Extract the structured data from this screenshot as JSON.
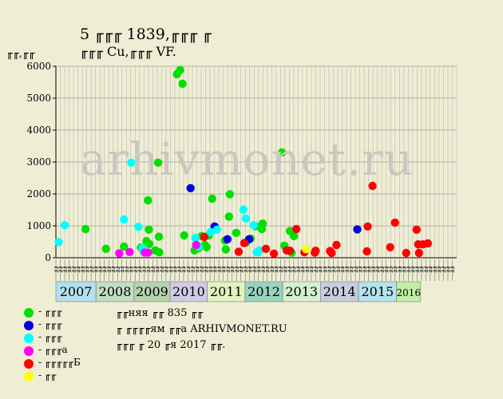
{
  "title_line1": "5 ╓╓╓ 1839,╓╓╓ ╓",
  "title_line2": "╓╓╓ Cu,╓╓╓ VF.",
  "ylabel": "╓╓,╓╓",
  "watermark": "arhivmonet.ru",
  "legend": [
    {
      "label": "- ╓╓╓",
      "color": "#00e000",
      "icon": "green-dot-icon"
    },
    {
      "label": "- ╓╓╓",
      "color": "#0000e0",
      "icon": "blue-dot-icon"
    },
    {
      "label": "- ╓╓╓",
      "color": "#00ffff",
      "icon": "cyan-dot-icon"
    },
    {
      "label": "- ╓╓╓a",
      "color": "#ff00ff",
      "icon": "magenta-dot-icon"
    },
    {
      "label": "- ╓╓╓╓╓Б",
      "color": "#ff0000",
      "icon": "red-dot-icon"
    },
    {
      "label": "- ╓╓",
      "color": "#ffff00",
      "icon": "yellow-dot-icon"
    }
  ],
  "info": {
    "line1": "╓╓няя ╓╓ 835 ╓╓",
    "line2": "╓ ╓╓╓╓ям ╓╓a ARHIVMONET.RU",
    "line3": "╓╓╓ ╓ 20 ╓я 2017 ╓╓."
  },
  "chart_data": {
    "type": "scatter",
    "ylim": [
      0,
      6000
    ],
    "xlim": [
      0,
      100
    ],
    "y_ticks": [
      0,
      1000,
      2000,
      3000,
      4000,
      5000,
      6000
    ],
    "grid": true,
    "years": [
      {
        "label": "2007",
        "start": 0,
        "end": 10,
        "color": "#b4e0ee"
      },
      {
        "label": "2008",
        "start": 10,
        "end": 19.5,
        "color": "#c4dcc4"
      },
      {
        "label": "2009",
        "start": 19.5,
        "end": 28.5,
        "color": "#b4d4b0"
      },
      {
        "label": "2010",
        "start": 28.5,
        "end": 37.8,
        "color": "#d0cce4"
      },
      {
        "label": "2011",
        "start": 37.8,
        "end": 47.2,
        "color": "#e2f2c0"
      },
      {
        "label": "2012",
        "start": 47.2,
        "end": 56.6,
        "color": "#98d4c0"
      },
      {
        "label": "2013",
        "start": 56.6,
        "end": 66,
        "color": "#d4f0d0"
      },
      {
        "label": "2014",
        "start": 66,
        "end": 75.5,
        "color": "#c8ccdc"
      },
      {
        "label": "2015",
        "start": 75.5,
        "end": 85,
        "color": "#b4e4ee"
      },
      {
        "label": "2016",
        "start": 85,
        "end": 91,
        "color": "#c4eea8"
      }
    ],
    "month_labels": [
      "╓╓",
      "╓╓",
      "╓╓",
      "╓╓",
      "╓╓",
      "╓╓",
      "╓╓",
      "╓╓",
      "╓╓",
      "╓╓",
      "╓╓",
      "╓╓",
      "╓╓",
      "╓╓",
      "╓╓",
      "╓╓",
      "╓╓",
      "╓╓",
      "╓╓",
      "╓╓",
      "╓╓",
      "╓╓",
      "╓╓",
      "╓╓",
      "╓╓",
      "╓╓",
      "╓╓",
      "╓╓",
      "╓╓",
      "╓╓",
      "╓╓",
      "╓╓",
      "╓╓",
      "╓╓",
      "╓╓",
      "╓╓",
      "╓╓",
      "╓╓",
      "╓╓",
      "╓╓",
      "╓╓",
      "╓╓",
      "╓╓",
      "╓╓",
      "╓╓",
      "╓╓",
      "╓╓",
      "╓╓",
      "╓╓",
      "╓╓",
      "╓╓",
      "╓╓",
      "╓╓",
      "╓╓",
      "╓╓",
      "╓╓",
      "╓╓",
      "╓╓",
      "╓╓",
      "╓╓",
      "╓╓",
      "╓╓",
      "╓╓",
      "╓╓",
      "╓╓",
      "╓╓",
      "╓╓",
      "╓╓",
      "╓╓",
      "╓╓",
      "╓╓",
      "╓╓",
      "╓╓",
      "╓╓",
      "╓╓",
      "╓╓",
      "╓╓",
      "╓╓",
      "╓╓",
      "╓╓",
      "╓╓",
      "╓╓",
      "╓╓",
      "╓╓",
      "╓╓",
      "╓╓",
      "╓╓",
      "╓╓",
      "╓╓",
      "╓╓",
      "╓╓"
    ],
    "series": [
      {
        "color": "#00e000",
        "points": [
          [
            7.4,
            900
          ],
          [
            12.5,
            280
          ],
          [
            17,
            350
          ],
          [
            21.2,
            320
          ],
          [
            22.6,
            520
          ],
          [
            23,
            1800
          ],
          [
            23.2,
            880
          ],
          [
            23.3,
            430
          ],
          [
            24.8,
            230
          ],
          [
            25.5,
            2980
          ],
          [
            25.7,
            660
          ],
          [
            25.8,
            170
          ],
          [
            30.2,
            5750
          ],
          [
            31,
            5880
          ],
          [
            31.6,
            5450
          ],
          [
            32,
            700
          ],
          [
            34.6,
            230
          ],
          [
            35.6,
            300
          ],
          [
            36.4,
            680
          ],
          [
            37.2,
            400
          ],
          [
            37.6,
            330
          ],
          [
            38.2,
            700
          ],
          [
            39,
            1850
          ],
          [
            42.2,
            540
          ],
          [
            42.4,
            260
          ],
          [
            43.2,
            1290
          ],
          [
            43.4,
            1990
          ],
          [
            45,
            780
          ],
          [
            47.4,
            470
          ],
          [
            48.6,
            600
          ],
          [
            49.8,
            990
          ],
          [
            50.4,
            180
          ],
          [
            51.4,
            900
          ],
          [
            51.6,
            1070
          ],
          [
            56.4,
            3300
          ],
          [
            57,
            380
          ],
          [
            58.4,
            840
          ],
          [
            58.8,
            160
          ],
          [
            59.4,
            680
          ]
        ]
      },
      {
        "color": "#0000e0",
        "points": [
          [
            33.6,
            2180
          ],
          [
            39.6,
            980
          ],
          [
            42.8,
            580
          ],
          [
            48.2,
            580
          ],
          [
            75.2,
            890
          ]
        ]
      },
      {
        "color": "#00ffff",
        "points": [
          [
            0.7,
            490
          ],
          [
            2.2,
            1020
          ],
          [
            17,
            1200
          ],
          [
            18.8,
            2980
          ],
          [
            20.6,
            970
          ],
          [
            21.6,
            300
          ],
          [
            21.9,
            190
          ],
          [
            34.8,
            620
          ],
          [
            35.6,
            350
          ],
          [
            38.6,
            800
          ],
          [
            40.2,
            880
          ],
          [
            46.8,
            1510
          ],
          [
            47.4,
            1230
          ],
          [
            49.4,
            1020
          ],
          [
            50.1,
            170
          ],
          [
            50.8,
            230
          ]
        ]
      },
      {
        "color": "#ff00ff",
        "points": [
          [
            15.8,
            140
          ],
          [
            18.4,
            180
          ],
          [
            22.2,
            160
          ],
          [
            23,
            160
          ],
          [
            35,
            400
          ]
        ]
      },
      {
        "color": "#ff0000",
        "points": [
          [
            37,
            650
          ],
          [
            45.6,
            190
          ],
          [
            47,
            460
          ],
          [
            52.4,
            280
          ],
          [
            54.4,
            130
          ],
          [
            57.6,
            230
          ],
          [
            58.4,
            220
          ],
          [
            60,
            900
          ],
          [
            62,
            170
          ],
          [
            64.6,
            160
          ],
          [
            64.8,
            220
          ],
          [
            68.4,
            210
          ],
          [
            68.8,
            150
          ],
          [
            70,
            400
          ],
          [
            77.6,
            200
          ],
          [
            77.8,
            980
          ],
          [
            79,
            2250
          ],
          [
            83.4,
            330
          ],
          [
            84.6,
            1100
          ],
          [
            87.4,
            150
          ],
          [
            90,
            880
          ],
          [
            90.4,
            420
          ],
          [
            90.6,
            150
          ],
          [
            91.6,
            420
          ],
          [
            92.8,
            450
          ]
        ]
      },
      {
        "color": "#ffff00",
        "points": [
          [
            62.4,
            270
          ]
        ]
      }
    ]
  }
}
